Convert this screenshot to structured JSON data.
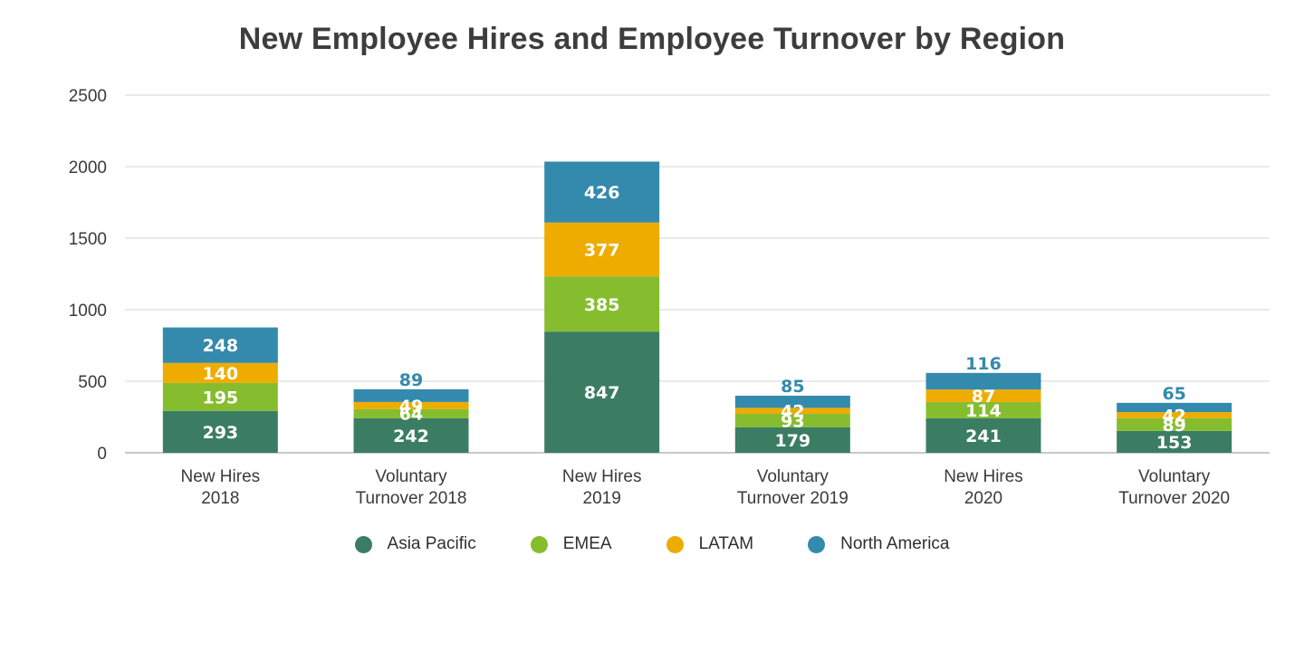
{
  "chart_data": {
    "type": "bar",
    "stacked": true,
    "title": "New Employee Hires and Employee Turnover by Region",
    "categories": [
      [
        "New Hires",
        "2018"
      ],
      [
        "Voluntary",
        "Turnover 2018"
      ],
      [
        "New Hires",
        "2019"
      ],
      [
        "Voluntary",
        "Turnover 2019"
      ],
      [
        "New Hires",
        "2020"
      ],
      [
        "Voluntary",
        "Turnover 2020"
      ]
    ],
    "series": [
      {
        "name": "Asia Pacific",
        "color": "#3b7d63",
        "label_color": "#ffffff",
        "values": [
          293,
          242,
          847,
          179,
          241,
          153
        ]
      },
      {
        "name": "EMEA",
        "color": "#86bd2f",
        "label_color": "#ffffff",
        "values": [
          195,
          64,
          385,
          93,
          114,
          89
        ]
      },
      {
        "name": "LATAM",
        "color": "#eeac00",
        "label_color": "#ffffff",
        "values": [
          140,
          49,
          377,
          42,
          87,
          42
        ]
      },
      {
        "name": "North America",
        "color": "#348aac",
        "label_color": "#ffffff",
        "values": [
          248,
          89,
          426,
          85,
          116,
          65
        ]
      }
    ],
    "ylim": [
      0,
      2500
    ],
    "yticks": [
      "0",
      "500",
      "1000",
      "1500",
      "2000",
      "2500"
    ],
    "ytick_values": [
      0,
      500,
      1000,
      1500,
      2000,
      2500
    ],
    "xlabel": "",
    "ylabel": "",
    "grid": true,
    "legend_position": "bottom"
  }
}
